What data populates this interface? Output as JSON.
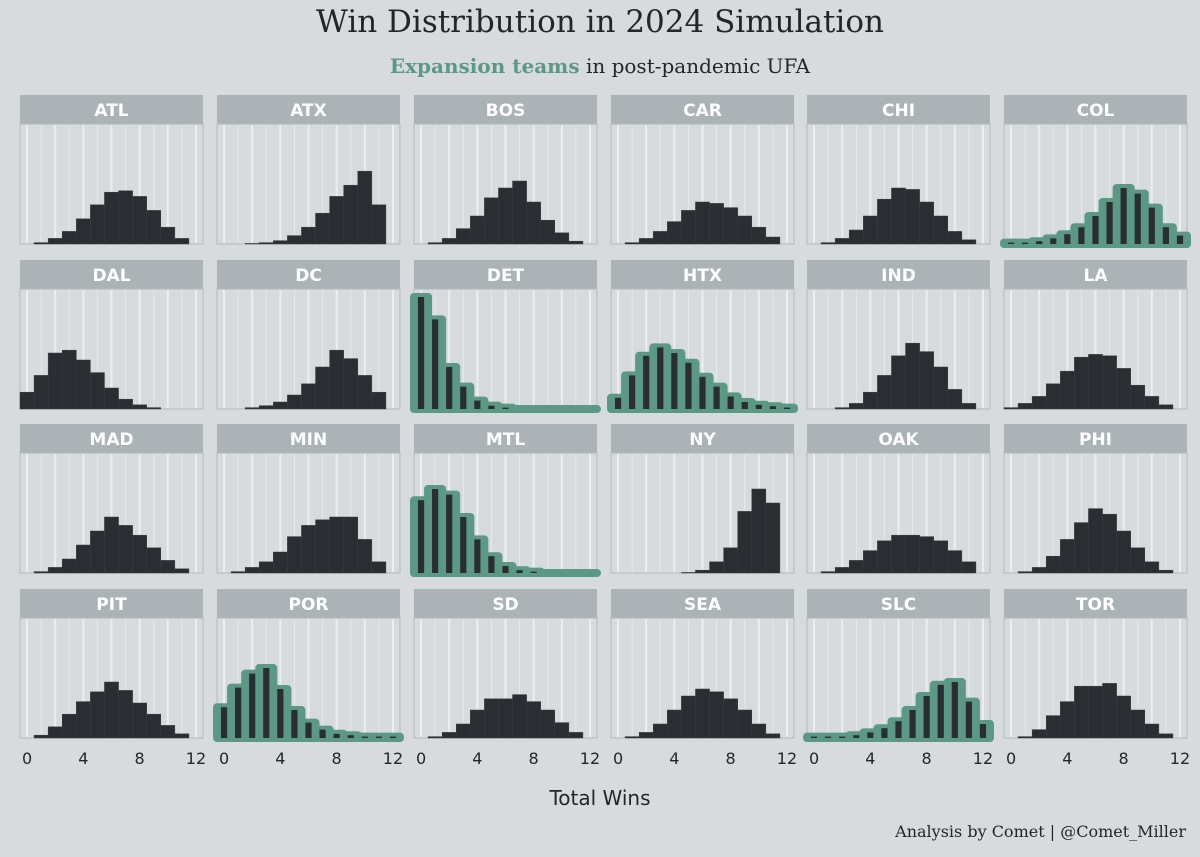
{
  "title": "Win Distribution in 2024 Simulation",
  "subtitle": {
    "highlight": "Expansion teams",
    "rest": " in post-pandemic UFA"
  },
  "caption": "Analysis by Comet | @Comet_Miller",
  "colors": {
    "background": "#d7dbde",
    "strip": "#abb3b7",
    "bar": "#2a2e33",
    "expansion_outline": "#5c9985",
    "gridline": "#eef0f1",
    "text": "#22262b"
  },
  "chart_data": {
    "type": "bar",
    "facet_layout": "6 columns x 4 rows",
    "xlabel": "Total Wins",
    "ylabel": "",
    "xlim": [
      -0.5,
      12.5
    ],
    "x_ticks": [
      0,
      4,
      8,
      12
    ],
    "x": [
      0,
      1,
      2,
      3,
      4,
      5,
      6,
      7,
      8,
      9,
      10,
      11,
      12
    ],
    "y_unit": "share of simulations",
    "grid": "vertical gridlines only",
    "legend": "none (expansion teams highlighted via subtitle)",
    "panels": [
      {
        "team": "ATL",
        "expansion": false,
        "values": [
          0,
          0.005,
          0.02,
          0.045,
          0.09,
          0.14,
          0.185,
          0.19,
          0.17,
          0.12,
          0.06,
          0.02,
          0
        ]
      },
      {
        "team": "ATX",
        "expansion": false,
        "values": [
          0,
          0,
          0.002,
          0.005,
          0.012,
          0.03,
          0.06,
          0.11,
          0.17,
          0.21,
          0.26,
          0.14,
          0
        ]
      },
      {
        "team": "BOS",
        "expansion": false,
        "values": [
          0,
          0.005,
          0.02,
          0.055,
          0.1,
          0.165,
          0.2,
          0.225,
          0.15,
          0.085,
          0.04,
          0.01,
          0
        ]
      },
      {
        "team": "CAR",
        "expansion": false,
        "values": [
          0,
          0.005,
          0.02,
          0.045,
          0.08,
          0.12,
          0.15,
          0.145,
          0.13,
          0.1,
          0.06,
          0.025,
          0
        ]
      },
      {
        "team": "CHI",
        "expansion": false,
        "values": [
          0,
          0.005,
          0.02,
          0.05,
          0.1,
          0.16,
          0.2,
          0.195,
          0.15,
          0.1,
          0.045,
          0.015,
          0
        ]
      },
      {
        "team": "COL",
        "expansion": true,
        "values": [
          0.005,
          0.005,
          0.01,
          0.02,
          0.035,
          0.06,
          0.1,
          0.15,
          0.2,
          0.18,
          0.13,
          0.06,
          0.03
        ]
      },
      {
        "team": "DAL",
        "expansion": false,
        "values": [
          0.06,
          0.12,
          0.2,
          0.21,
          0.175,
          0.13,
          0.075,
          0.035,
          0.015,
          0.005,
          0,
          0,
          0
        ]
      },
      {
        "team": "DC",
        "expansion": false,
        "values": [
          0,
          0,
          0.005,
          0.012,
          0.025,
          0.05,
          0.09,
          0.15,
          0.21,
          0.18,
          0.12,
          0.06,
          0
        ]
      },
      {
        "team": "DET",
        "expansion": true,
        "values": [
          0.4,
          0.32,
          0.15,
          0.08,
          0.03,
          0.012,
          0.005,
          0,
          0,
          0,
          0,
          0,
          0
        ]
      },
      {
        "team": "HTX",
        "expansion": true,
        "values": [
          0.04,
          0.12,
          0.19,
          0.22,
          0.2,
          0.165,
          0.115,
          0.08,
          0.045,
          0.025,
          0.015,
          0.01,
          0.005
        ]
      },
      {
        "team": "IND",
        "expansion": false,
        "values": [
          0,
          0,
          0.005,
          0.02,
          0.06,
          0.12,
          0.19,
          0.235,
          0.205,
          0.15,
          0.07,
          0.02,
          0
        ]
      },
      {
        "team": "LA",
        "expansion": false,
        "values": [
          0.005,
          0.02,
          0.045,
          0.09,
          0.135,
          0.185,
          0.195,
          0.19,
          0.145,
          0.085,
          0.045,
          0.015,
          0
        ]
      },
      {
        "team": "MAD",
        "expansion": false,
        "values": [
          0,
          0.005,
          0.02,
          0.05,
          0.1,
          0.15,
          0.2,
          0.17,
          0.135,
          0.09,
          0.045,
          0.015,
          0
        ]
      },
      {
        "team": "MIN",
        "expansion": false,
        "values": [
          0,
          0.005,
          0.02,
          0.04,
          0.075,
          0.13,
          0.17,
          0.19,
          0.2,
          0.2,
          0.12,
          0.04,
          0
        ]
      },
      {
        "team": "MTL",
        "expansion": true,
        "values": [
          0.26,
          0.3,
          0.28,
          0.2,
          0.12,
          0.06,
          0.025,
          0.01,
          0.005,
          0,
          0,
          0,
          0
        ]
      },
      {
        "team": "NY",
        "expansion": false,
        "values": [
          0,
          0,
          0,
          0,
          0,
          0.002,
          0.01,
          0.04,
          0.09,
          0.22,
          0.3,
          0.25,
          0
        ]
      },
      {
        "team": "OAK",
        "expansion": false,
        "values": [
          0,
          0.005,
          0.02,
          0.045,
          0.08,
          0.115,
          0.135,
          0.135,
          0.13,
          0.115,
          0.08,
          0.04,
          0
        ]
      },
      {
        "team": "PHI",
        "expansion": false,
        "values": [
          0,
          0.005,
          0.02,
          0.06,
          0.12,
          0.18,
          0.23,
          0.21,
          0.15,
          0.09,
          0.04,
          0.01,
          0
        ]
      },
      {
        "team": "PIT",
        "expansion": false,
        "values": [
          0,
          0.01,
          0.04,
          0.085,
          0.13,
          0.165,
          0.2,
          0.17,
          0.125,
          0.085,
          0.045,
          0.015,
          0
        ]
      },
      {
        "team": "POR",
        "expansion": true,
        "values": [
          0.11,
          0.18,
          0.23,
          0.25,
          0.175,
          0.1,
          0.055,
          0.03,
          0.015,
          0.01,
          0.005,
          0.005,
          0.005
        ]
      },
      {
        "team": "SD",
        "expansion": false,
        "values": [
          0,
          0.005,
          0.02,
          0.05,
          0.1,
          0.14,
          0.14,
          0.155,
          0.13,
          0.1,
          0.055,
          0.02,
          0
        ]
      },
      {
        "team": "SEA",
        "expansion": false,
        "values": [
          0,
          0.005,
          0.02,
          0.05,
          0.1,
          0.15,
          0.175,
          0.165,
          0.14,
          0.1,
          0.05,
          0.015,
          0
        ]
      },
      {
        "team": "SLC",
        "expansion": true,
        "values": [
          0.005,
          0.005,
          0.005,
          0.01,
          0.02,
          0.035,
          0.06,
          0.1,
          0.15,
          0.19,
          0.2,
          0.13,
          0.05
        ]
      },
      {
        "team": "TOR",
        "expansion": false,
        "values": [
          0,
          0.005,
          0.03,
          0.08,
          0.13,
          0.185,
          0.185,
          0.195,
          0.15,
          0.1,
          0.05,
          0.015,
          0
        ]
      }
    ]
  }
}
